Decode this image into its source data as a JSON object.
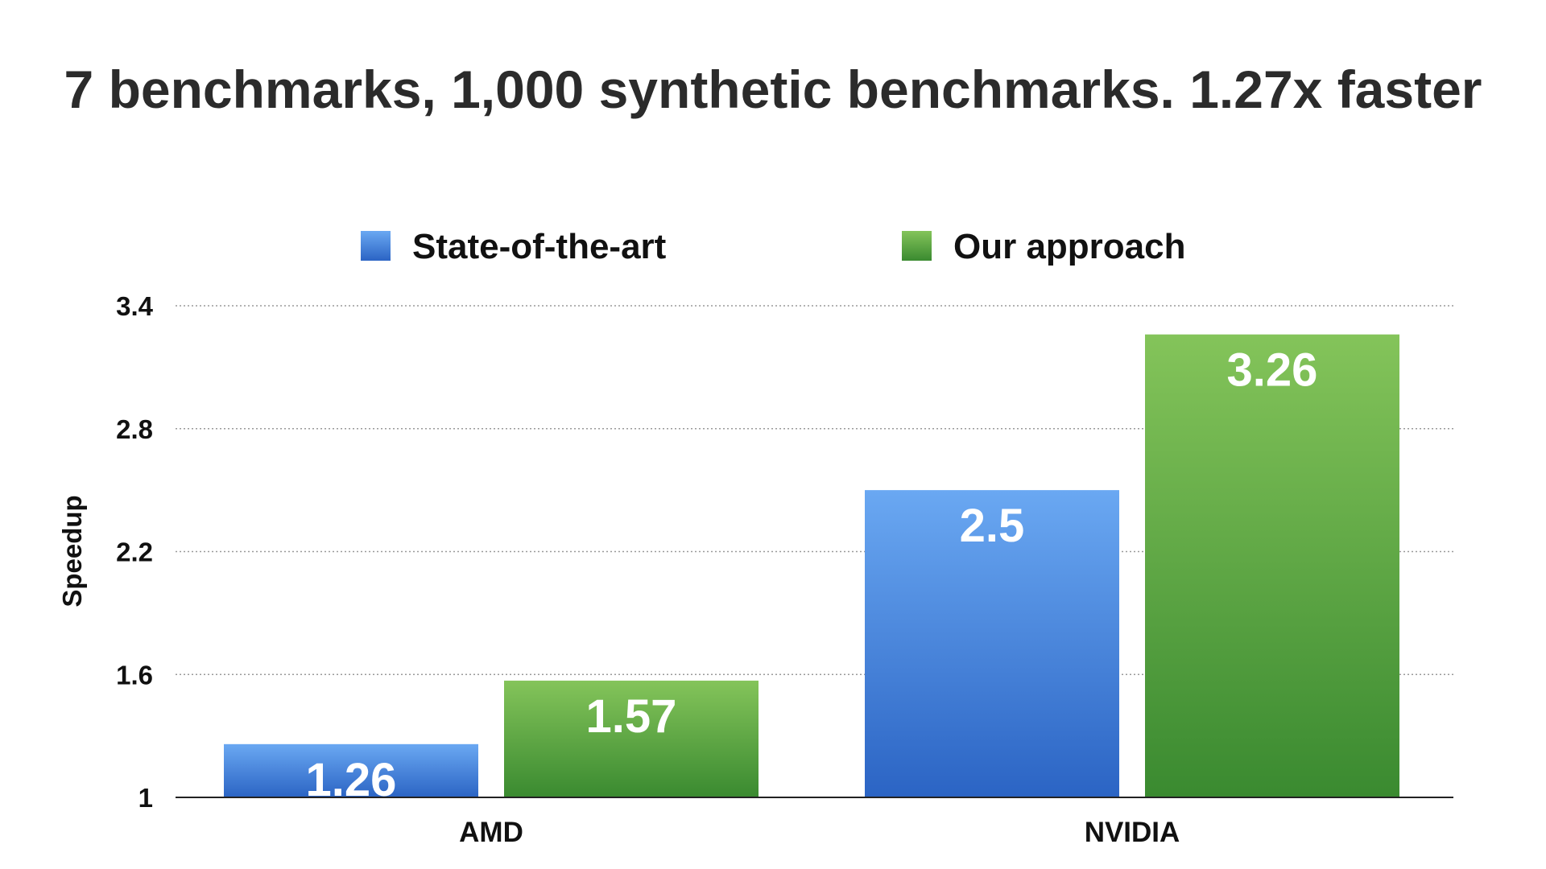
{
  "chart_data": {
    "type": "bar",
    "title": "7 benchmarks, 1,000 synthetic benchmarks. 1.27x faster",
    "xlabel": "",
    "ylabel": "Speedup",
    "categories": [
      "AMD",
      "NVIDIA"
    ],
    "series": [
      {
        "name": "State-of-the-art",
        "values": [
          1.26,
          2.5
        ],
        "color": "#3f7fd8",
        "gradient": [
          "#6aa8f2",
          "#2b64c4"
        ],
        "value_labels": [
          "1.26",
          "2.5"
        ]
      },
      {
        "name": "Our approach",
        "values": [
          1.57,
          3.26
        ],
        "color": "#4c9c3c",
        "gradient": [
          "#84c45a",
          "#3a8a30"
        ],
        "value_labels": [
          "1.57",
          "3.26"
        ]
      }
    ],
    "ylim": [
      1,
      3.4
    ],
    "yticks": [
      1,
      1.6,
      2.2,
      2.8,
      3.4
    ],
    "ytick_labels": [
      "1",
      "1.6",
      "2.2",
      "2.8",
      "3.4"
    ],
    "grid": true,
    "legend_position": "top-center"
  }
}
